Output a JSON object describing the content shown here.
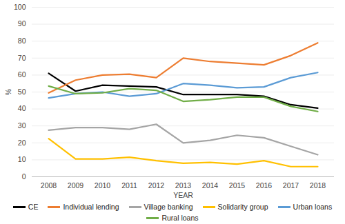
{
  "chart_data": {
    "type": "line",
    "x_label": "YEAR",
    "y_label": "%",
    "categories": [
      "2008",
      "2009",
      "2010",
      "2011",
      "2012",
      "2013",
      "2014",
      "2015",
      "2016",
      "2017",
      "2018"
    ],
    "series": [
      {
        "name": "CE",
        "color": "#000000",
        "values": [
          61,
          50.5,
          54,
          53.5,
          53,
          48.5,
          48.5,
          48.5,
          47.5,
          42.5,
          40.5
        ]
      },
      {
        "name": "Individual lending",
        "color": "#ED7D31",
        "values": [
          49.5,
          57,
          60,
          60.5,
          58.5,
          70,
          68,
          67,
          66,
          71.5,
          79
        ]
      },
      {
        "name": "Village banking",
        "color": "#A5A5A5",
        "values": [
          27.5,
          29,
          29,
          28,
          31,
          20,
          21.5,
          24.5,
          23,
          18,
          13
        ]
      },
      {
        "name": "Solidarity group",
        "color": "#FFC000",
        "values": [
          22.5,
          10.5,
          10.5,
          11.5,
          9.5,
          8,
          8.5,
          7.5,
          9.5,
          6,
          6
        ]
      },
      {
        "name": "Urban loans",
        "color": "#5B9BD5",
        "values": [
          46.5,
          49,
          50,
          47.5,
          49,
          55,
          54,
          52.5,
          53,
          58.5,
          61.5
        ]
      },
      {
        "name": "Rural loans",
        "color": "#70AD47",
        "values": [
          53.5,
          49,
          49.5,
          52,
          51,
          44.5,
          45.5,
          47,
          47,
          41.5,
          38.5
        ]
      }
    ],
    "ylim": [
      0,
      100
    ],
    "yticks": [
      0,
      10,
      20,
      30,
      40,
      50,
      60,
      70,
      80,
      90,
      100
    ],
    "grid": true,
    "legend": "bottom"
  }
}
